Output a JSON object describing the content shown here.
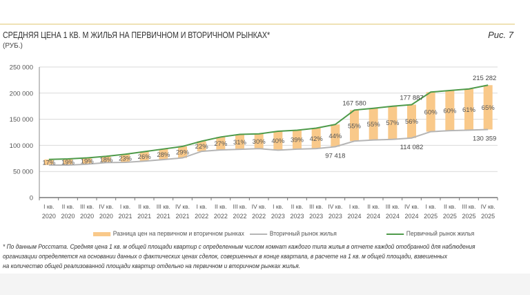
{
  "header": {
    "title": "СРЕДНЯЯ ЦЕНА 1 КВ. М ЖИЛЬЯ НА ПЕРВИЧНОМ И ВТОРИЧНОМ РЫНКАХ*",
    "unit": "(РУБ.)",
    "figure": "Рис. 7"
  },
  "chart_data": {
    "type": "line",
    "title": "СРЕДНЯЯ ЦЕНА 1 КВ. М ЖИЛЬЯ НА ПЕРВИЧНОМ И ВТОРИЧНОМ РЫНКАХ*",
    "ylabel": "(РУБ.)",
    "ylim": [
      0,
      250000
    ],
    "yticks": [
      "0",
      "50 000",
      "100 000",
      "150 000",
      "200 000",
      "250 000"
    ],
    "grid": true,
    "legend_position": "bottom",
    "categories": [
      [
        "I кв.",
        "2020"
      ],
      [
        "II кв.",
        "2020"
      ],
      [
        "III кв.",
        "2020"
      ],
      [
        "IV кв.",
        "2020"
      ],
      [
        "I кв.",
        "2021"
      ],
      [
        "II кв.",
        "2021"
      ],
      [
        "III кв.",
        "2021"
      ],
      [
        "IV кв.",
        "2021"
      ],
      [
        "I кв.",
        "2022"
      ],
      [
        "II кв.",
        "2022"
      ],
      [
        "III кв.",
        "2022"
      ],
      [
        "IV кв.",
        "2022"
      ],
      [
        "I кв.",
        "2023"
      ],
      [
        "II кв.",
        "2023"
      ],
      [
        "III кв.",
        "2023"
      ],
      [
        "IV кв.",
        "2023"
      ],
      [
        "I кв.",
        "2024"
      ],
      [
        "II кв.",
        "2024"
      ],
      [
        "III кв.",
        "2024"
      ],
      [
        "IV кв.",
        "2024"
      ],
      [
        "I кв.",
        "2025"
      ],
      [
        "II кв.",
        "2025"
      ],
      [
        "III кв.",
        "2025"
      ],
      [
        "IV кв.",
        "2025"
      ]
    ],
    "series": [
      {
        "name": "Первичный рынок жилья",
        "color": "#4e9a4a",
        "values": [
          73000,
          74000,
          76000,
          79000,
          83000,
          88000,
          93000,
          98000,
          108000,
          116000,
          121000,
          122000,
          127000,
          129000,
          133000,
          140000,
          167580,
          171000,
          175000,
          177887,
          202000,
          205000,
          208000,
          215282
        ]
      },
      {
        "name": "Вторичный рынок жилья",
        "color": "#b5b5b5",
        "values": [
          62400,
          62200,
          63900,
          67000,
          67500,
          69800,
          72700,
          76000,
          88500,
          91300,
          92400,
          93800,
          90700,
          92800,
          93700,
          97418,
          108100,
          110300,
          111500,
          114082,
          126200,
          128100,
          129200,
          130359
        ]
      },
      {
        "name": "Разница цен на первичном и вторичном рынках",
        "color": "#f9c98a",
        "type": "bar",
        "labels": [
          "17%",
          "19%",
          "19%",
          "18%",
          "23%",
          "26%",
          "28%",
          "29%",
          "22%",
          "27%",
          "31%",
          "30%",
          "40%",
          "39%",
          "42%",
          "44%",
          "55%",
          "55%",
          "57%",
          "56%",
          "60%",
          "60%",
          "61%",
          "65%"
        ]
      }
    ],
    "annotations": [
      {
        "series": 0,
        "index": 16,
        "text": "167 580"
      },
      {
        "series": 0,
        "index": 19,
        "text": "177 887"
      },
      {
        "series": 0,
        "index": 23,
        "text": "215 282"
      },
      {
        "series": 1,
        "index": 15,
        "text": "97 418"
      },
      {
        "series": 1,
        "index": 19,
        "text": "114 082"
      },
      {
        "series": 1,
        "index": 23,
        "text": "130 359"
      }
    ]
  },
  "legend": {
    "diff": "Разница цен на первичном и вторичном рынках",
    "secondary": "Вторичный рынок жилья",
    "primary": "Первичный рынок жилья"
  },
  "footnote": [
    "* По данным Росстата. Средняя цена 1 кв. м общей площади квартир с определенным числом комнат каждого типа жилья в отчете каждой отобранной для наблюдения",
    "организации определяется на основании данных о фактических ценах сделок, совершенных в конце квартала, в расчете на 1 кв. м общей площади, взвешенных",
    "на количество общей реализованной площади квартир отдельно на первичном и вторичном рынках жилья."
  ]
}
